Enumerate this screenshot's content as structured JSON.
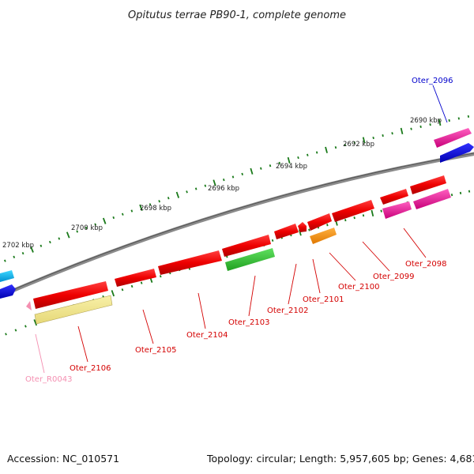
{
  "title": "Opitutus terrae PB90-1, complete genome",
  "footer": {
    "accession": "Accession: NC_010571",
    "summary": "Topology: circular; Length: 5,957,605 bp; Genes: 4,681"
  },
  "ticks": [
    "2690 kbp",
    "2692 kbp",
    "2694 kbp",
    "2696 kbp",
    "2698 kbp",
    "2700 kbp",
    "2702 kbp"
  ],
  "genes": [
    {
      "id": "Oter_2096",
      "color": "#0000cc"
    },
    {
      "id": "Oter_2098",
      "color": "#d40000"
    },
    {
      "id": "Oter_2099",
      "color": "#d40000"
    },
    {
      "id": "Oter_2100",
      "color": "#d40000"
    },
    {
      "id": "Oter_2101",
      "color": "#d40000"
    },
    {
      "id": "Oter_2102",
      "color": "#d40000"
    },
    {
      "id": "Oter_2103",
      "color": "#d40000"
    },
    {
      "id": "Oter_2104",
      "color": "#d40000"
    },
    {
      "id": "Oter_2105",
      "color": "#d40000"
    },
    {
      "id": "Oter_2106",
      "color": "#d40000"
    },
    {
      "id": "Oter_R0043",
      "color": "#f48fb1"
    }
  ]
}
